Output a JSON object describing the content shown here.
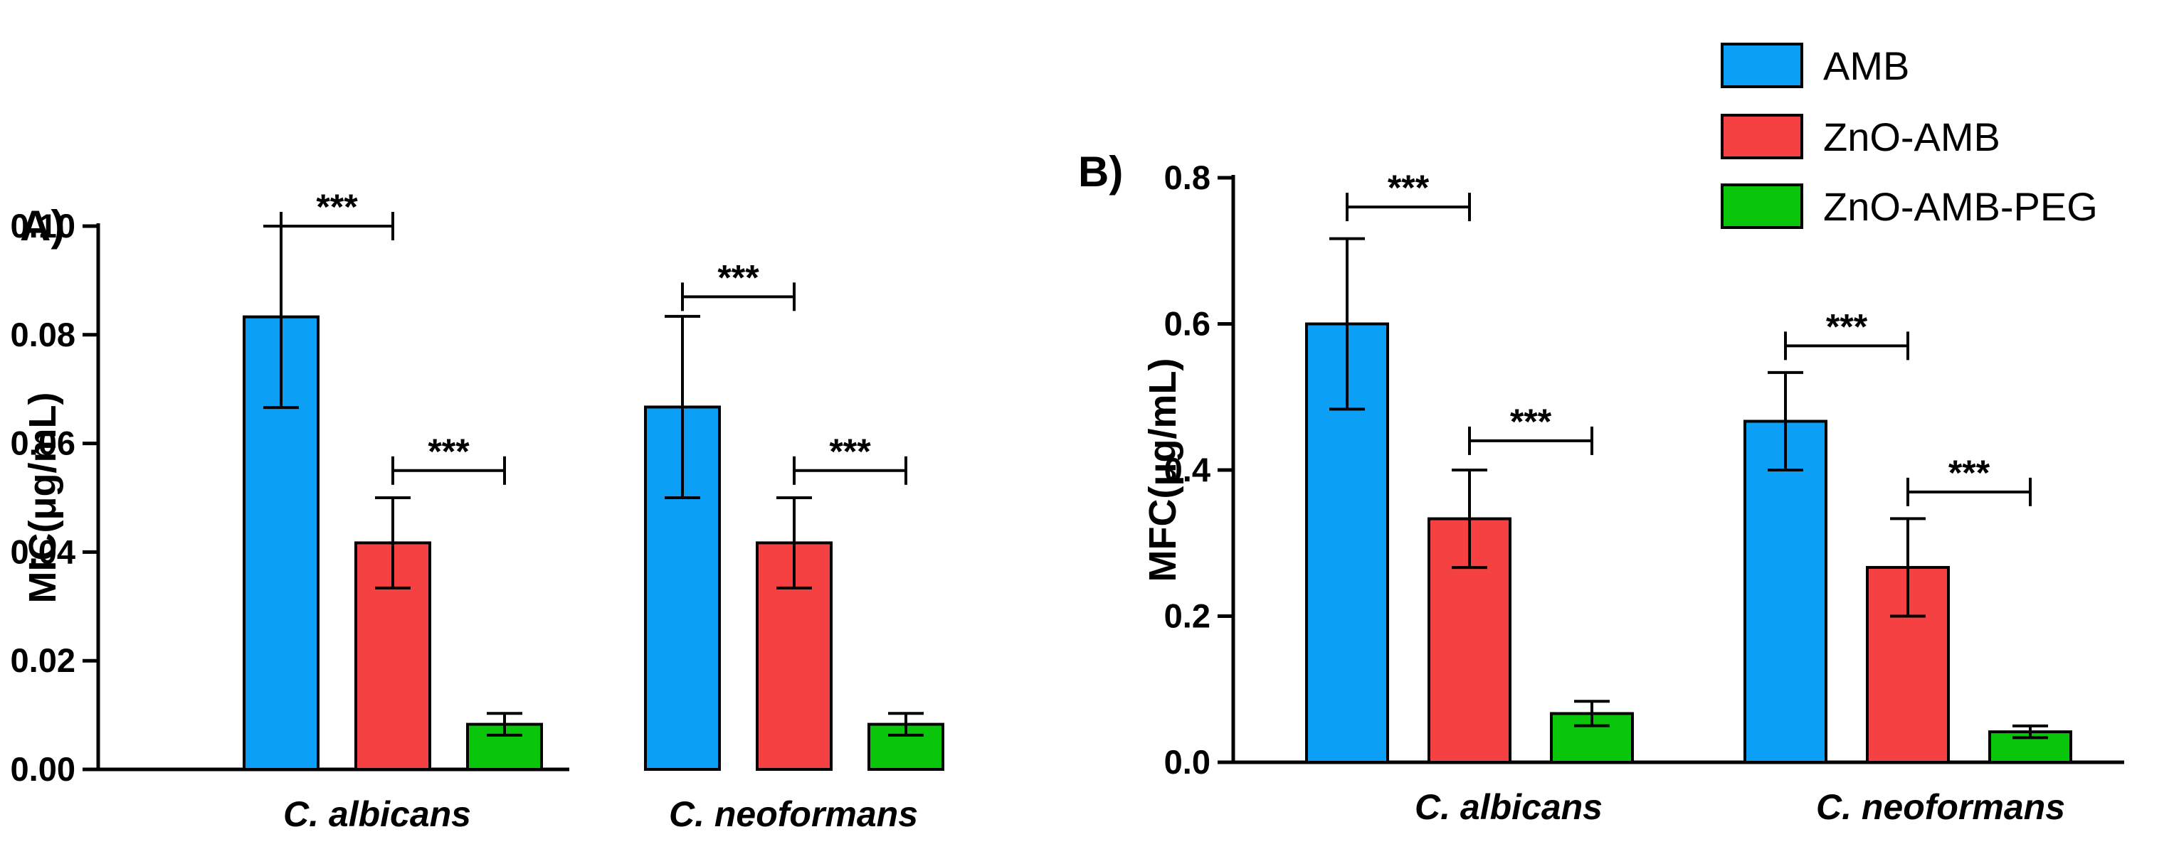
{
  "figure": {
    "colors": {
      "AMB": "#0ba0f5",
      "ZnO-AMB": "#f54141",
      "ZnO-AMB-PEG": "#0ac60a",
      "axis": "#000000"
    }
  },
  "legend": {
    "entries": [
      "AMB",
      "ZnO-AMB",
      "ZnO-AMB-PEG"
    ]
  },
  "chart_data": [
    {
      "panel_label": "A)",
      "type": "bar",
      "ylabel": "MIC(μg/mL)",
      "xlabel": "",
      "ylim": [
        0,
        0.1
      ],
      "yticks": [
        "0.00",
        "0.02",
        "0.04",
        "0.06",
        "0.08",
        "0.10"
      ],
      "ytick_values": [
        0,
        0.02,
        0.04,
        0.06,
        0.08,
        0.1
      ],
      "categories": [
        "C. albicans",
        "C. neoformans"
      ],
      "series": [
        {
          "name": "AMB",
          "values": [
            0.0833,
            0.0667
          ],
          "errors": [
            0.0167,
            0.0167
          ]
        },
        {
          "name": "ZnO-AMB",
          "values": [
            0.0417,
            0.0417
          ],
          "errors": [
            0.0083,
            0.0083
          ]
        },
        {
          "name": "ZnO-AMB-PEG",
          "values": [
            0.0083,
            0.0083
          ],
          "errors": [
            0.002,
            0.002
          ]
        }
      ],
      "significance": [
        {
          "category": 0,
          "from": 0,
          "to": 1,
          "level": 0.1,
          "label": "***"
        },
        {
          "category": 0,
          "from": 1,
          "to": 2,
          "level": 0.055,
          "label": "***"
        },
        {
          "category": 1,
          "from": 0,
          "to": 1,
          "level": 0.087,
          "label": "***"
        },
        {
          "category": 1,
          "from": 1,
          "to": 2,
          "level": 0.055,
          "label": "***"
        }
      ]
    },
    {
      "panel_label": "B)",
      "type": "bar",
      "ylabel": "MFC(μg/mL)",
      "xlabel": "",
      "ylim": [
        0,
        0.8
      ],
      "yticks": [
        "0.0",
        "0.2",
        "0.4",
        "0.6",
        "0.8"
      ],
      "ytick_values": [
        0,
        0.2,
        0.4,
        0.6,
        0.8
      ],
      "categories": [
        "C. albicans",
        "C. neoformans"
      ],
      "series": [
        {
          "name": "AMB",
          "values": [
            0.6,
            0.4667
          ],
          "errors": [
            0.1167,
            0.0667
          ]
        },
        {
          "name": "ZnO-AMB",
          "values": [
            0.3333,
            0.2667
          ],
          "errors": [
            0.0667,
            0.0667
          ]
        },
        {
          "name": "ZnO-AMB-PEG",
          "values": [
            0.0667,
            0.0417
          ],
          "errors": [
            0.0167,
            0.008
          ]
        }
      ],
      "significance": [
        {
          "category": 0,
          "from": 0,
          "to": 1,
          "level": 0.76,
          "label": "***"
        },
        {
          "category": 0,
          "from": 1,
          "to": 2,
          "level": 0.44,
          "label": "***"
        },
        {
          "category": 1,
          "from": 0,
          "to": 1,
          "level": 0.57,
          "label": "***"
        },
        {
          "category": 1,
          "from": 1,
          "to": 2,
          "level": 0.37,
          "label": "***"
        }
      ]
    }
  ]
}
